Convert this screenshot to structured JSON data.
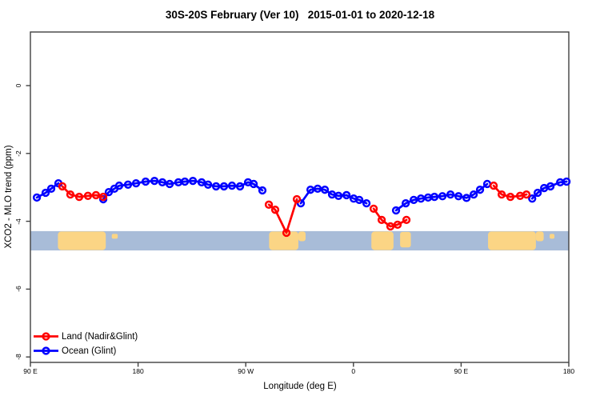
{
  "title": "30S-20S February (Ver 10)   2015-01-01 to 2020-12-18",
  "chart_data": {
    "type": "line",
    "title": "30S-20S February (Ver 10)   2015-01-01 to 2020-12-18",
    "xlabel": "Longitude (deg E)",
    "ylabel": "XCO2 - MLO trend (ppm)",
    "xlim": [
      90,
      540
    ],
    "ylim": [
      -8.2,
      1.6
    ],
    "grid": false,
    "legend_position": "bottom-left",
    "x_ticks": [
      {
        "lon": 90,
        "label": "90 E"
      },
      {
        "lon": 180,
        "label": "180"
      },
      {
        "lon": 270,
        "label": "90 W"
      },
      {
        "lon": 360,
        "label": "0"
      },
      {
        "lon": 450,
        "label": "90 E"
      },
      {
        "lon": 540,
        "label": "180"
      }
    ],
    "y_ticks": [
      {
        "v": 0,
        "label": "0"
      },
      {
        "v": -2,
        "label": "-2"
      },
      {
        "v": -4,
        "label": "-4"
      },
      {
        "v": -6,
        "label": "-6"
      },
      {
        "v": -8,
        "label": "-8"
      }
    ],
    "series": [
      {
        "name": "Land (Nadir&Glint)",
        "color": "#ff0000",
        "marker": "open-circle",
        "segments": [
          {
            "x": [
              116.7,
              123.4,
              130.8,
              138.1,
              144.8,
              150.9
            ],
            "y": [
              -2.97,
              -3.21,
              -3.28,
              -3.25,
              -3.23,
              -3.28
            ]
          },
          {
            "x": [
              289.3,
              294.6,
              304.0,
              312.7
            ],
            "y": [
              -3.51,
              -3.66,
              -4.34,
              -3.35
            ]
          },
          {
            "x": [
              376.9,
              383.6,
              390.9,
              396.9,
              404.3
            ],
            "y": [
              -3.63,
              -3.96,
              -4.15,
              -4.1,
              -3.96
            ]
          },
          {
            "x": [
              477.2,
              483.9,
              491.2,
              499.3,
              504.6
            ],
            "y": [
              -2.95,
              -3.21,
              -3.28,
              -3.25,
              -3.21
            ]
          }
        ]
      },
      {
        "name": "Ocean (Glint)",
        "color": "#0000ff",
        "marker": "open-circle",
        "segments": [
          {
            "x": [
              95.4,
              102.7,
              107.4,
              113.4
            ],
            "y": [
              -3.3,
              -3.16,
              -3.04,
              -2.88
            ]
          },
          {
            "x": [
              150.9,
              155.5,
              160.2,
              164.2,
              171.6,
              178.3,
              186.3,
              193.7,
              200.3,
              206.4,
              213.7,
              219.1,
              225.8,
              233.1,
              238.5,
              245.2,
              251.8,
              258.5,
              265.2,
              271.9,
              276.6,
              283.9
            ],
            "y": [
              -3.35,
              -3.14,
              -3.04,
              -2.95,
              -2.92,
              -2.88,
              -2.83,
              -2.81,
              -2.85,
              -2.9,
              -2.85,
              -2.83,
              -2.81,
              -2.85,
              -2.92,
              -2.97,
              -2.97,
              -2.95,
              -2.97,
              -2.85,
              -2.9,
              -3.09
            ]
          },
          {
            "x": [
              316.0,
              324.1,
              330.1,
              336.1,
              342.1,
              347.5,
              354.2,
              360.2,
              364.9,
              370.9
            ],
            "y": [
              -3.47,
              -3.07,
              -3.04,
              -3.07,
              -3.21,
              -3.25,
              -3.23,
              -3.33,
              -3.37,
              -3.47
            ]
          },
          {
            "x": [
              395.6,
              403.7,
              410.4,
              416.4,
              422.4,
              427.7,
              434.4,
              441.1,
              447.8,
              454.5,
              460.5,
              465.8,
              471.8
            ],
            "y": [
              -3.68,
              -3.47,
              -3.37,
              -3.33,
              -3.3,
              -3.28,
              -3.26,
              -3.21,
              -3.26,
              -3.31,
              -3.21,
              -3.07,
              -2.9
            ]
          },
          {
            "x": [
              509.4,
              514.0,
              519.4,
              524.7,
              532.8,
              538.1
            ],
            "y": [
              -3.33,
              -3.16,
              -3.02,
              -2.97,
              -2.85,
              -2.83
            ]
          }
        ]
      }
    ],
    "map_strip": {
      "y_top": -4.29,
      "y_bottom": -4.86,
      "ocean_color": "#a8bcd8",
      "land_color": "#fbd585",
      "land_blocks": [
        {
          "from": 113.0,
          "to": 153.0,
          "shape": "full",
          "region": "australia"
        },
        {
          "from": 158.0,
          "to": 163.0,
          "shape": "islet",
          "region": "new-caledonia"
        },
        {
          "from": 289.5,
          "to": 314.0,
          "shape": "full",
          "region": "south-america"
        },
        {
          "from": 314.0,
          "to": 320.0,
          "shape": "upper",
          "region": "south-america-east"
        },
        {
          "from": 375.0,
          "to": 393.5,
          "shape": "full",
          "region": "africa"
        },
        {
          "from": 399.0,
          "to": 408.0,
          "shape": "most",
          "region": "madagascar"
        },
        {
          "from": 472.5,
          "to": 512.5,
          "shape": "full",
          "region": "australia"
        },
        {
          "from": 512.5,
          "to": 519.0,
          "shape": "upper",
          "region": "australia-east"
        },
        {
          "from": 524.0,
          "to": 528.0,
          "shape": "islet",
          "region": "new-caledonia"
        }
      ]
    },
    "axis_color": "#404040"
  }
}
